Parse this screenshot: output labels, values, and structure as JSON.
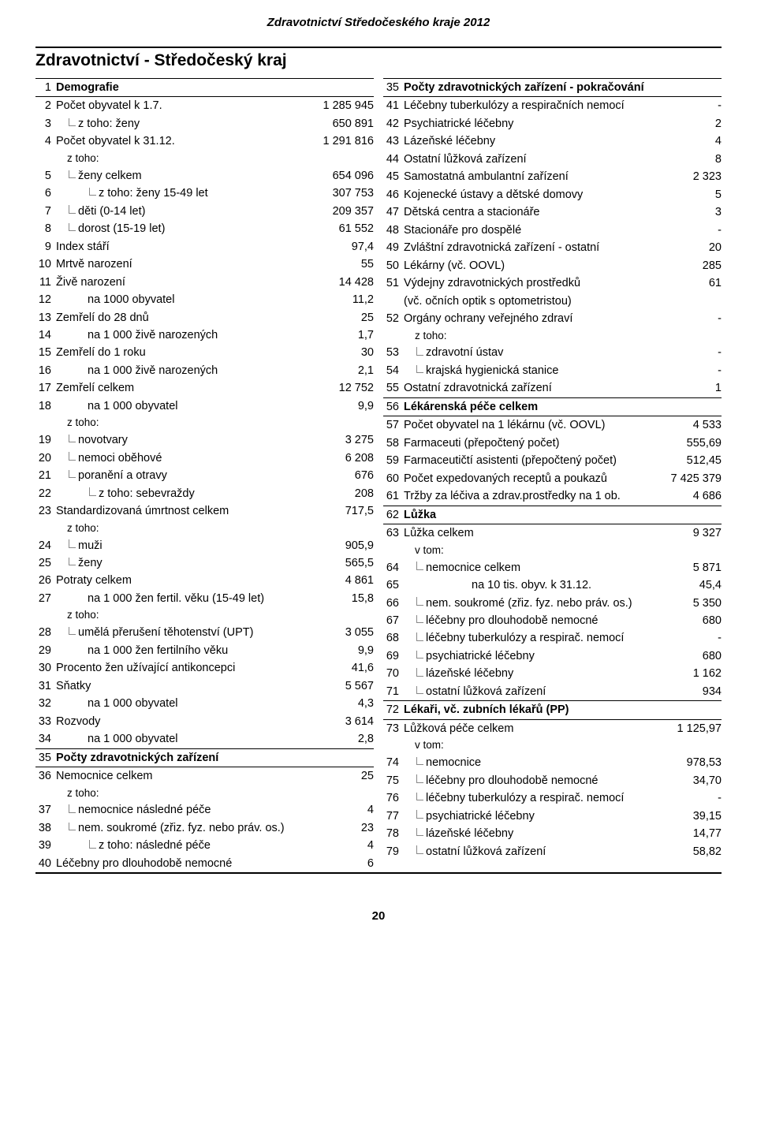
{
  "doc_header": "Zdravotnictví Středočeského kraje 2012",
  "page_title": "Zdravotnictví - Středočeský kraj",
  "page_number": "20",
  "left": [
    {
      "n": "1",
      "label": "Demografie",
      "val": "",
      "cls": "section"
    },
    {
      "n": "2",
      "label": "Počet obyvatel k 1.7.",
      "val": "1 285 945"
    },
    {
      "n": "3",
      "label": "z toho: ženy",
      "val": "650 891",
      "tree": "sub",
      "indent": "ind1"
    },
    {
      "n": "4",
      "label": "Počet obyvatel k 31.12.",
      "val": "1 291 816"
    },
    {
      "n": "",
      "label": "z toho:",
      "val": "",
      "cls": "ztoho",
      "indent": "ind1"
    },
    {
      "n": "5",
      "label": "ženy celkem",
      "val": "654 096",
      "tree": "sub",
      "indent": "ind1"
    },
    {
      "n": "6",
      "label": "z toho: ženy 15-49 let",
      "val": "307 753",
      "tree": "sub2",
      "indent": "ind2"
    },
    {
      "n": "7",
      "label": "děti (0-14 let)",
      "val": "209 357",
      "tree": "sub",
      "indent": "ind1"
    },
    {
      "n": "8",
      "label": "dorost (15-19 let)",
      "val": "61 552",
      "tree": "sub",
      "indent": "ind1"
    },
    {
      "n": "9",
      "label": "Index stáří",
      "val": "97,4"
    },
    {
      "n": "10",
      "label": "Mrtvě narození",
      "val": "55"
    },
    {
      "n": "11",
      "label": "Živě narození",
      "val": "14 428"
    },
    {
      "n": "12",
      "label": "na 1000 obyvatel",
      "val": "11,2",
      "indent": "ind2"
    },
    {
      "n": "13",
      "label": "Zemřelí do 28 dnů",
      "val": "25"
    },
    {
      "n": "14",
      "label": "na 1 000 živě narozených",
      "val": "1,7",
      "indent": "ind2"
    },
    {
      "n": "15",
      "label": "Zemřelí do 1 roku",
      "val": "30"
    },
    {
      "n": "16",
      "label": "na 1 000 živě narozených",
      "val": "2,1",
      "indent": "ind2"
    },
    {
      "n": "17",
      "label": "Zemřelí celkem",
      "val": "12 752"
    },
    {
      "n": "18",
      "label": "na 1 000 obyvatel",
      "val": "9,9",
      "indent": "ind2"
    },
    {
      "n": "",
      "label": "z toho:",
      "val": "",
      "cls": "ztoho",
      "indent": "ind1"
    },
    {
      "n": "19",
      "label": "novotvary",
      "val": "3 275",
      "tree": "sub",
      "indent": "ind1"
    },
    {
      "n": "20",
      "label": "nemoci oběhové",
      "val": "6 208",
      "tree": "sub",
      "indent": "ind1"
    },
    {
      "n": "21",
      "label": "poranění a otravy",
      "val": "676",
      "tree": "sub",
      "indent": "ind1"
    },
    {
      "n": "22",
      "label": "z toho: sebevraždy",
      "val": "208",
      "tree": "sub2",
      "indent": "ind2"
    },
    {
      "n": "23",
      "label": "Standardizovaná úmrtnost celkem",
      "val": "717,5"
    },
    {
      "n": "",
      "label": "z toho:",
      "val": "",
      "cls": "ztoho",
      "indent": "ind1"
    },
    {
      "n": "24",
      "label": "muži",
      "val": "905,9",
      "tree": "sub",
      "indent": "ind1"
    },
    {
      "n": "25",
      "label": "ženy",
      "val": "565,5",
      "tree": "sub",
      "indent": "ind1"
    },
    {
      "n": "26",
      "label": "Potraty celkem",
      "val": "4 861"
    },
    {
      "n": "27",
      "label": "na 1 000 žen fertil. věku (15-49 let)",
      "val": "15,8",
      "indent": "ind2"
    },
    {
      "n": "",
      "label": "z toho:",
      "val": "",
      "cls": "ztoho",
      "indent": "ind1"
    },
    {
      "n": "28",
      "label": "umělá přerušení těhotenství (UPT)",
      "val": "3 055",
      "tree": "sub",
      "indent": "ind1"
    },
    {
      "n": "29",
      "label": "na 1 000 žen fertilního věku",
      "val": "9,9",
      "indent": "ind2"
    },
    {
      "n": "30",
      "label": "Procento žen užívající antikoncepci",
      "val": "41,6"
    },
    {
      "n": "31",
      "label": "Sňatky",
      "val": "5 567"
    },
    {
      "n": "32",
      "label": "na 1 000 obyvatel",
      "val": "4,3",
      "indent": "ind2"
    },
    {
      "n": "33",
      "label": "Rozvody",
      "val": "3 614"
    },
    {
      "n": "34",
      "label": "na 1 000 obyvatel",
      "val": "2,8",
      "indent": "ind2"
    },
    {
      "n": "35",
      "label": "Počty zdravotnických zařízení",
      "val": "",
      "cls": "section"
    },
    {
      "n": "36",
      "label": "Nemocnice celkem",
      "val": "25"
    },
    {
      "n": "",
      "label": "z toho:",
      "val": "",
      "cls": "ztoho",
      "indent": "ind1"
    },
    {
      "n": "37",
      "label": "nemocnice následné péče",
      "val": "4",
      "tree": "sub",
      "indent": "ind1"
    },
    {
      "n": "38",
      "label": "nem. soukromé (zřiz. fyz. nebo práv. os.)",
      "val": "23",
      "tree": "sub",
      "indent": "ind1"
    },
    {
      "n": "39",
      "label": "z toho: následné péče",
      "val": "4",
      "tree": "sub2",
      "indent": "ind2"
    },
    {
      "n": "40",
      "label": "Léčebny pro dlouhodobě nemocné",
      "val": "6"
    }
  ],
  "right": [
    {
      "n": "35",
      "label": "Počty zdravotnických zařízení - pokračování",
      "val": "",
      "cls": "section"
    },
    {
      "n": "41",
      "label": "Léčebny tuberkulózy a respiračních nemocí",
      "val": "-"
    },
    {
      "n": "42",
      "label": "Psychiatrické léčebny",
      "val": "2"
    },
    {
      "n": "43",
      "label": "Lázeňské léčebny",
      "val": "4"
    },
    {
      "n": "44",
      "label": "Ostatní lůžková zařízení",
      "val": "8"
    },
    {
      "n": "45",
      "label": "Samostatná ambulantní zařízení",
      "val": "2 323"
    },
    {
      "n": "46",
      "label": "Kojenecké ústavy a dětské domovy",
      "val": "5"
    },
    {
      "n": "47",
      "label": "Dětská centra a stacionáře",
      "val": "3"
    },
    {
      "n": "48",
      "label": "Stacionáře pro dospělé",
      "val": "-"
    },
    {
      "n": "49",
      "label": "Zvláštní zdravotnická zařízení - ostatní",
      "val": "20"
    },
    {
      "n": "50",
      "label": "Lékárny (vč. OOVL)",
      "val": "285"
    },
    {
      "n": "51",
      "label": "Výdejny zdravotnických prostředků",
      "val": "61"
    },
    {
      "n": "",
      "label": "(vč. očních optik s optometristou)",
      "val": ""
    },
    {
      "n": "52",
      "label": "Orgány ochrany veřejného zdraví",
      "val": "-"
    },
    {
      "n": "",
      "label": "z toho:",
      "val": "",
      "cls": "ztoho",
      "indent": "ind1"
    },
    {
      "n": "53",
      "label": "zdravotní ústav",
      "val": "-",
      "tree": "sub",
      "indent": "ind1"
    },
    {
      "n": "54",
      "label": "krajská hygienická stanice",
      "val": "-",
      "tree": "sub",
      "indent": "ind1"
    },
    {
      "n": "55",
      "label": "Ostatní zdravotnická zařízení",
      "val": "1"
    },
    {
      "n": "56",
      "label": "Lékárenská péče celkem",
      "val": "",
      "cls": "section"
    },
    {
      "n": "57",
      "label": "Počet obyvatel na 1 lékárnu (vč. OOVL)",
      "val": "4 533"
    },
    {
      "n": "58",
      "label": "Farmaceuti (přepočtený počet)",
      "val": "555,69"
    },
    {
      "n": "59",
      "label": "Farmaceutičtí asistenti (přepočtený počet)",
      "val": "512,45"
    },
    {
      "n": "60",
      "label": "Počet expedovaných receptů a poukazů",
      "val": "7 425 379"
    },
    {
      "n": "61",
      "label": "Tržby za léčiva a zdrav.prostředky na 1 ob.",
      "val": "4 686"
    },
    {
      "n": "62",
      "label": "Lůžka",
      "val": "",
      "cls": "section"
    },
    {
      "n": "63",
      "label": "Lůžka celkem",
      "val": "9 327"
    },
    {
      "n": "",
      "label": "v tom:",
      "val": "",
      "cls": "ztoho",
      "indent": "ind1"
    },
    {
      "n": "64",
      "label": "nemocnice celkem",
      "val": "5 871",
      "tree": "sub",
      "indent": "ind1"
    },
    {
      "n": "65",
      "label": "na 10 tis. obyv. k 31.12.",
      "val": "45,4",
      "indent": "ind3"
    },
    {
      "n": "66",
      "label": "nem. soukromé (zřiz. fyz. nebo práv. os.)",
      "val": "5 350",
      "tree": "sub",
      "indent": "ind1"
    },
    {
      "n": "67",
      "label": "léčebny pro dlouhodobě nemocné",
      "val": "680",
      "tree": "sub",
      "indent": "ind1"
    },
    {
      "n": "68",
      "label": "léčebny tuberkulózy a respirač. nemocí",
      "val": "-",
      "tree": "sub",
      "indent": "ind1"
    },
    {
      "n": "69",
      "label": "psychiatrické léčebny",
      "val": "680",
      "tree": "sub",
      "indent": "ind1"
    },
    {
      "n": "70",
      "label": "lázeňské léčebny",
      "val": "1 162",
      "tree": "sub",
      "indent": "ind1"
    },
    {
      "n": "71",
      "label": "ostatní lůžková zařízení",
      "val": "934",
      "tree": "sub",
      "indent": "ind1"
    },
    {
      "n": "72",
      "label": "Lékaři, vč. zubních lékařů (PP)",
      "val": "",
      "cls": "section"
    },
    {
      "n": "73",
      "label": "Lůžková péče celkem",
      "val": "1 125,97"
    },
    {
      "n": "",
      "label": "v tom:",
      "val": "",
      "cls": "ztoho",
      "indent": "ind1"
    },
    {
      "n": "74",
      "label": "nemocnice",
      "val": "978,53",
      "tree": "sub",
      "indent": "ind1"
    },
    {
      "n": "75",
      "label": "léčebny pro dlouhodobě nemocné",
      "val": "34,70",
      "tree": "sub",
      "indent": "ind1"
    },
    {
      "n": "76",
      "label": "léčebny tuberkulózy a respirač. nemocí",
      "val": "-",
      "tree": "sub",
      "indent": "ind1"
    },
    {
      "n": "77",
      "label": "psychiatrické léčebny",
      "val": "39,15",
      "tree": "sub",
      "indent": "ind1"
    },
    {
      "n": "78",
      "label": "lázeňské léčebny",
      "val": "14,77",
      "tree": "sub",
      "indent": "ind1"
    },
    {
      "n": "79",
      "label": "ostatní lůžková zařízení",
      "val": "58,82",
      "tree": "sub",
      "indent": "ind1"
    }
  ]
}
